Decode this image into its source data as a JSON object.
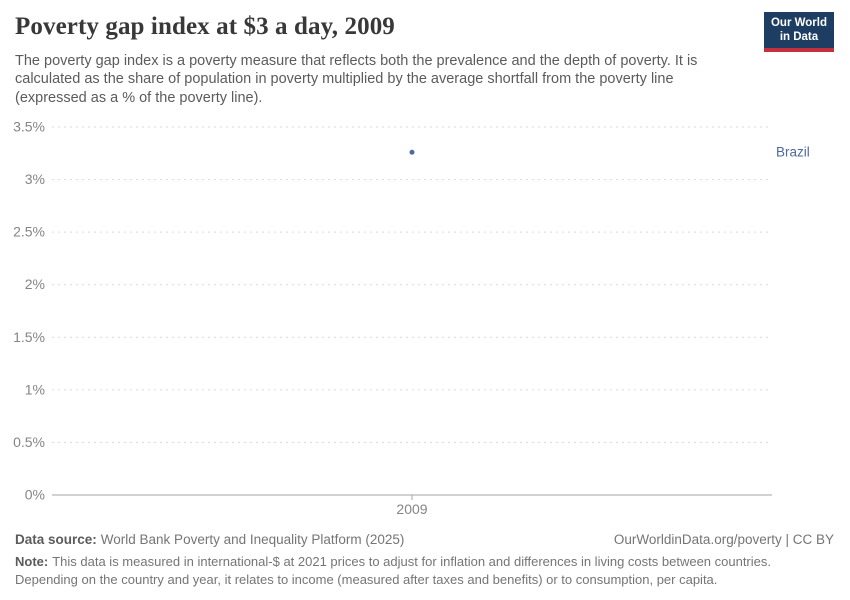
{
  "header": {
    "title": "Poverty gap index at $3 a day, 2009",
    "subtitle": "The poverty gap index is a poverty measure that reflects both the prevalence and the depth of poverty. It is calculated as the share of population in poverty multiplied by the average shortfall from the poverty line (expressed as a % of the poverty line)."
  },
  "logo": {
    "text_line1": "Our World",
    "text_line2": "in Data",
    "background_color": "#1d3d63",
    "accent_color": "#c5303e"
  },
  "chart_data": {
    "type": "scatter",
    "title": "Poverty gap index at $3 a day, 2009",
    "x": [
      2009
    ],
    "x_tick_labels": [
      "2009"
    ],
    "series": [
      {
        "name": "Brazil",
        "values": [
          3.26
        ],
        "color": "#4c6a9c"
      }
    ],
    "xlabel": "",
    "ylabel": "",
    "ylim": [
      0,
      3.5
    ],
    "y_ticks": [
      0,
      0.5,
      1,
      1.5,
      2,
      2.5,
      3,
      3.5
    ],
    "y_tick_labels": [
      "0%",
      "0.5%",
      "1%",
      "1.5%",
      "2%",
      "2.5%",
      "3%",
      "3.5%"
    ],
    "grid": "horizontal-dashed",
    "legend_position": "entity-label-right"
  },
  "colors": {
    "grid_line": "#dadada",
    "axis_line": "#a6a6a6",
    "tick_label": "#858585",
    "point_blue": "#4c6a9c"
  },
  "footer": {
    "data_source_label": "Data source:",
    "data_source_value": "World Bank Poverty and Inequality Platform (2025)",
    "attribution": "OurWorldinData.org/poverty | CC BY",
    "note_label": "Note:",
    "note_text": "This data is measured in international-$ at 2021 prices to adjust for inflation and differences in living costs between countries. Depending on the country and year, it relates to income (measured after taxes and benefits) or to consumption, per capita."
  }
}
